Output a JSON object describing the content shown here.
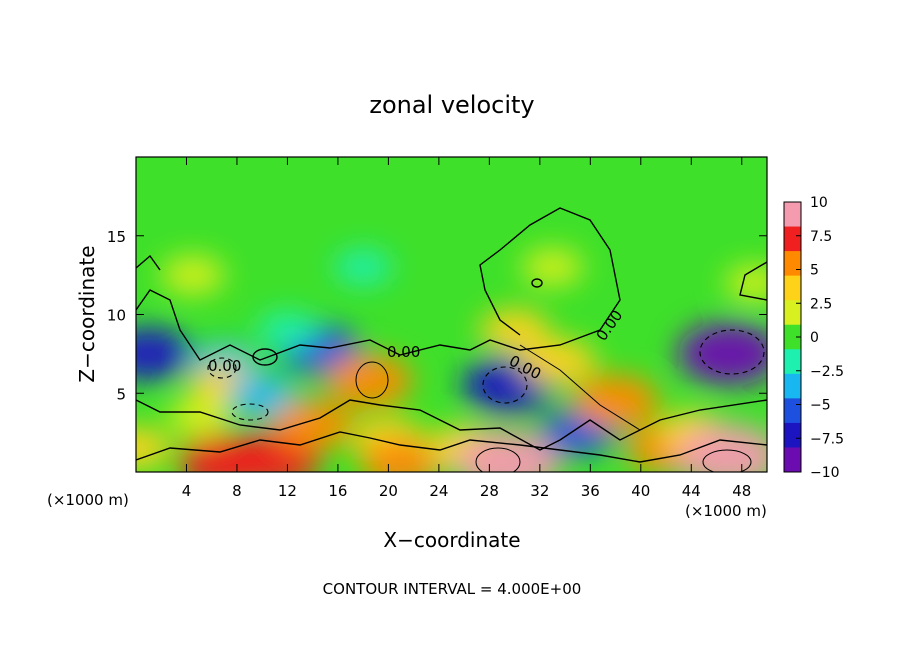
{
  "chart_data": {
    "type": "heatmap",
    "title": "zonal velocity",
    "xlabel": "X−coordinate",
    "ylabel": "Z−coordinate",
    "x_unit_left": "(×1000 m)",
    "x_unit_right": "(×1000 m)",
    "footer": "CONTOUR INTERVAL = 4.000E+00",
    "xlim": [
      0,
      50
    ],
    "ylim": [
      0,
      20
    ],
    "x_ticks": [
      4,
      8,
      12,
      16,
      20,
      24,
      28,
      32,
      36,
      40,
      44,
      48
    ],
    "y_ticks": [
      5,
      10,
      15
    ],
    "colorbar": {
      "ticks": [
        10,
        7.5,
        5,
        2.5,
        0,
        -2.5,
        -5,
        -7.5,
        -10
      ],
      "tick_labels": [
        "10",
        "7.5",
        "5",
        "2.5",
        "0",
        "−2.5",
        "−5",
        "−7.5",
        "−10"
      ],
      "range": [
        -10,
        10
      ],
      "colors": [
        "#f49bb0",
        "#f02020",
        "#ff8a00",
        "#ffd21a",
        "#d8f020",
        "#3ee02a",
        "#1ef0b0",
        "#19b7f2",
        "#1e50e0",
        "#1c14c0",
        "#6a0cb0"
      ]
    },
    "contour_labels": [
      "0.00",
      "0.00",
      "0.00",
      "0.00"
    ],
    "features": [
      {
        "x": 0,
        "z": 1.5,
        "value": 4
      },
      {
        "x": 1,
        "z": 7.5,
        "value": -7
      },
      {
        "x": 4.5,
        "z": 12.5,
        "value": 3
      },
      {
        "x": 7,
        "z": 6.8,
        "value": -4
      },
      {
        "x": 7,
        "z": 5.5,
        "value": 4
      },
      {
        "x": 10,
        "z": 4.8,
        "value": -4
      },
      {
        "x": 7,
        "z": 0.6,
        "value": 8
      },
      {
        "x": 11,
        "z": 0.8,
        "value": 8
      },
      {
        "x": 14,
        "z": 3,
        "value": 6
      },
      {
        "x": 14.5,
        "z": 7.8,
        "value": -6
      },
      {
        "x": 18.5,
        "z": 5.8,
        "value": 7
      },
      {
        "x": 20,
        "z": 2,
        "value": 5
      },
      {
        "x": 22,
        "z": 0.6,
        "value": -3
      },
      {
        "x": 21,
        "z": 0.5,
        "value": 6
      },
      {
        "x": 26,
        "z": 1.5,
        "value": 5
      },
      {
        "x": 29.5,
        "z": 5.5,
        "value": -8
      },
      {
        "x": 29.5,
        "z": 0.6,
        "value": 10
      },
      {
        "x": 33.5,
        "z": 7,
        "value": 5
      },
      {
        "x": 33,
        "z": 13,
        "value": 2.5
      },
      {
        "x": 35,
        "z": 2.5,
        "value": -5
      },
      {
        "x": 38,
        "z": 4.5,
        "value": 7
      },
      {
        "x": 42,
        "z": 1.5,
        "value": 6
      },
      {
        "x": 44,
        "z": 2.5,
        "value": 4
      },
      {
        "x": 47,
        "z": 7.5,
        "value": -10
      },
      {
        "x": 47,
        "z": 1,
        "value": 10
      },
      {
        "x": 49,
        "z": 12,
        "value": 2
      },
      {
        "x": 30,
        "z": 9,
        "value": 4
      },
      {
        "x": 18,
        "z": 13,
        "value": -2
      },
      {
        "x": 12,
        "z": 9,
        "value": -2.5
      },
      {
        "x": 5,
        "z": 3.5,
        "value": 3
      }
    ]
  }
}
